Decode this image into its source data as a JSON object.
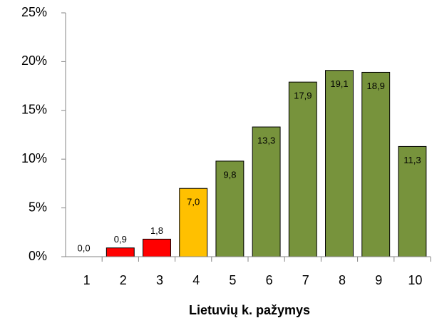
{
  "chart_data": {
    "type": "bar",
    "x_label": "Lietuvių k. pažymys",
    "categories": [
      "1",
      "2",
      "3",
      "4",
      "5",
      "6",
      "7",
      "8",
      "9",
      "10"
    ],
    "values": [
      0.0,
      0.9,
      1.8,
      7.0,
      9.8,
      13.3,
      17.9,
      19.1,
      18.9,
      11.3
    ],
    "value_labels": [
      "0,0",
      "0,9",
      "1,8",
      "7,0",
      "9,8",
      "13,3",
      "17,9",
      "19,1",
      "18,9",
      "11,3"
    ],
    "colors": [
      "#ff0000",
      "#ff0000",
      "#ff0000",
      "#ffc000",
      "#77933c",
      "#77933c",
      "#77933c",
      "#77933c",
      "#77933c",
      "#77933c"
    ],
    "ylim": [
      0,
      25
    ],
    "yticks": [
      {
        "value": 0,
        "label": "0%"
      },
      {
        "value": 5,
        "label": "5%"
      },
      {
        "value": 10,
        "label": "10%"
      },
      {
        "value": 15,
        "label": "15%"
      },
      {
        "value": 20,
        "label": "20%"
      },
      {
        "value": 25,
        "label": "25%"
      }
    ],
    "grid": false
  }
}
